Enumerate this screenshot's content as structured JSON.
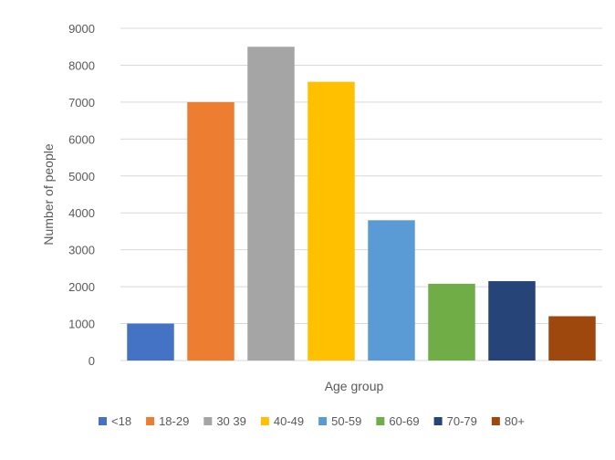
{
  "chart_data": {
    "type": "bar",
    "categories": [
      "<18",
      "18-29",
      "30-39",
      "40-49",
      "50-59",
      "60-69",
      "70-79",
      "80+"
    ],
    "values": [
      1000,
      7000,
      8500,
      7550,
      3800,
      2080,
      2150,
      1200
    ],
    "colors": [
      "#4472C4",
      "#ED7D31",
      "#A5A5A5",
      "#FFC000",
      "#5B9BD5",
      "#70AD47",
      "#264478",
      "#9E480E"
    ],
    "xlabel": "Age group",
    "ylabel": "Number of people",
    "ylim": [
      0,
      9000
    ],
    "yticks": [
      0,
      1000,
      2000,
      3000,
      4000,
      5000,
      6000,
      7000,
      8000,
      9000
    ],
    "grid": true,
    "legend": {
      "position": "bottom",
      "entries": [
        "<18",
        "18-29",
        "30 39",
        "40-49",
        "50-59",
        "60-69",
        "70-79",
        "80+"
      ]
    }
  }
}
